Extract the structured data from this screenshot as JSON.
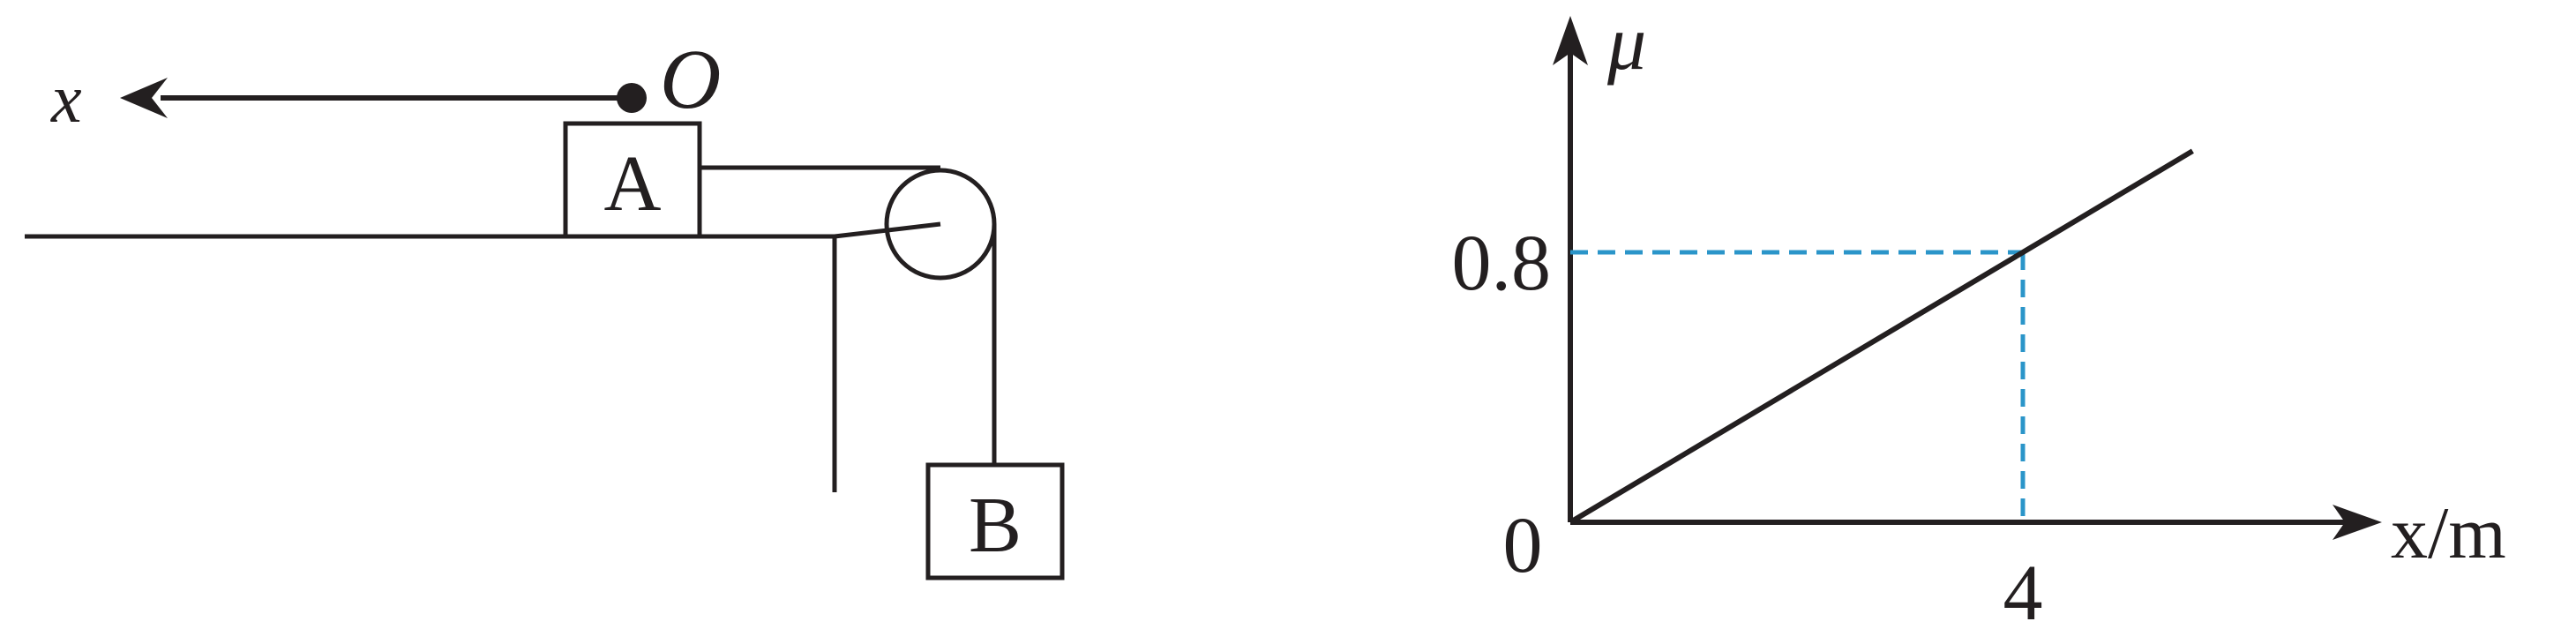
{
  "mechanism": {
    "axis_label": "x",
    "origin_label": "O",
    "block_a_label": "A",
    "block_b_label": "B"
  },
  "graph": {
    "y_axis_label": "μ",
    "x_axis_label": "x/m",
    "origin_tick": "0",
    "y_tick": "0.8",
    "x_tick": "4",
    "guide_color": "#2b95c9",
    "line_color": "#231f20"
  },
  "chart_data": {
    "type": "line",
    "title": "",
    "xlabel": "x/m",
    "ylabel": "μ",
    "series": [
      {
        "x": [
          0,
          4,
          5.5
        ],
        "y": [
          0,
          0.8,
          1.1
        ]
      }
    ],
    "reference_point": {
      "x": 4,
      "y": 0.8
    },
    "x_ticks": [
      "4"
    ],
    "y_ticks": [
      "0.8"
    ],
    "grid": false
  }
}
